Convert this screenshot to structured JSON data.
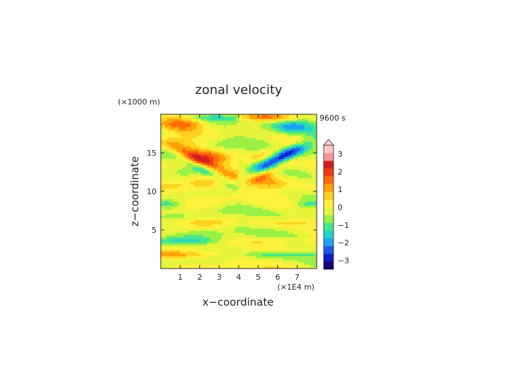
{
  "chart_data": {
    "type": "heatmap",
    "title": "zonal velocity",
    "time_label": "9600 s",
    "xlabel": "x−coordinate",
    "ylabel": "z−coordinate",
    "x_unit": "(×1E4 m)",
    "y_unit": "(×1000 m)",
    "xlim": [
      0,
      8
    ],
    "ylim": [
      0,
      20
    ],
    "x_ticks": [
      "1",
      "2",
      "3",
      "4",
      "5",
      "6",
      "7"
    ],
    "y_ticks": [
      "5",
      "10",
      "15"
    ],
    "colorbar": {
      "min": -3.5,
      "max": 3.5,
      "step": 0.5,
      "tick_labels": [
        "3",
        "2",
        "1",
        "0",
        "−1",
        "−2",
        "−3"
      ],
      "colors": [
        "#1a0070",
        "#0a1ec8",
        "#1e5ae6",
        "#1ea0f0",
        "#24d2c8",
        "#46e68c",
        "#9bf046",
        "#e6f53c",
        "#fff03c",
        "#ffd21e",
        "#ffa00a",
        "#ff6e0a",
        "#f03c14",
        "#d21e1e",
        "#ff9696",
        "#ffc8c8"
      ]
    }
  }
}
